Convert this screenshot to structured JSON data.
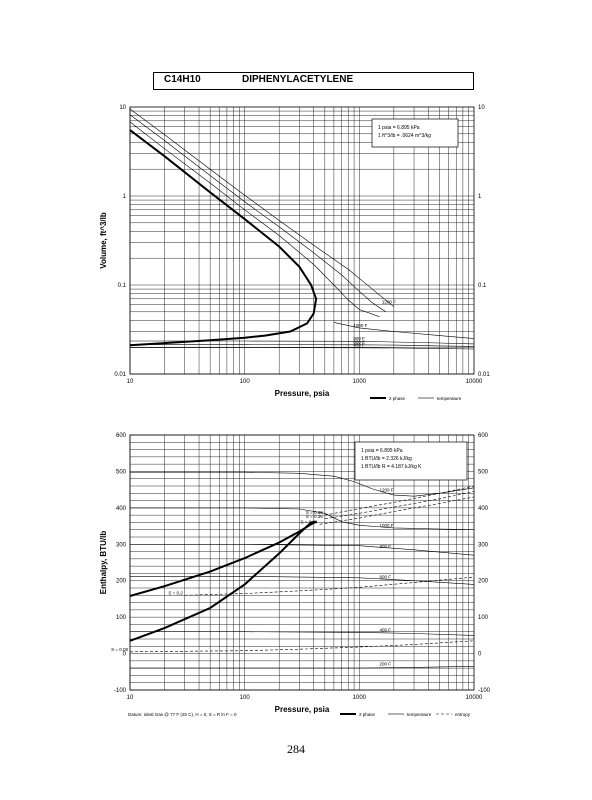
{
  "header": {
    "formula": "C14H10",
    "name": "DIPHENYLACETYLENE"
  },
  "page_number": "284",
  "chart_data": [
    {
      "type": "line",
      "xscale": "log",
      "yscale": "log",
      "xlim": [
        10,
        10000
      ],
      "ylim": [
        0.01,
        10
      ],
      "xlabel": "Pressure, psia",
      "ylabel": "Volume, ft^3/lb",
      "xticks": [
        10,
        100,
        1000,
        10000
      ],
      "xtick_labels": [
        "10",
        "100",
        "1000",
        "10000"
      ],
      "yticks": [
        0.01,
        0.1,
        1,
        10
      ],
      "ytick_labels": [
        "0.01",
        "0.1",
        "1",
        "10"
      ],
      "grid": true,
      "conversion_note": [
        "1 psia = 6.895 kPa",
        "1 ft^3/lb = .0624 m^3/kg"
      ],
      "legend": [
        {
          "label": "2 phase",
          "style": "thick"
        },
        {
          "label": "temperature",
          "style": "thin"
        }
      ],
      "series": [
        {
          "name": "2 phase",
          "style": "thick",
          "x": [
            10,
            20,
            50,
            100,
            200,
            300,
            380,
            420,
            400,
            350,
            250,
            150,
            100,
            50,
            10
          ],
          "y": [
            5.5,
            2.8,
            1.1,
            0.55,
            0.27,
            0.16,
            0.1,
            0.07,
            0.048,
            0.037,
            0.03,
            0.027,
            0.0255,
            0.024,
            0.021
          ]
        },
        {
          "name": "",
          "style": "thin",
          "x": [
            10,
            20,
            50,
            100,
            200,
            400,
            600,
            800,
            1000,
            1500
          ],
          "y": [
            6.8,
            3.4,
            1.4,
            0.7,
            0.36,
            0.17,
            0.1,
            0.068,
            0.053,
            0.044
          ]
        },
        {
          "name": "",
          "style": "thin",
          "x": [
            10,
            20,
            50,
            100,
            200,
            400,
            700,
            1000,
            1300,
            1700
          ],
          "y": [
            8.2,
            4.2,
            1.7,
            0.86,
            0.45,
            0.23,
            0.13,
            0.085,
            0.063,
            0.05
          ]
        },
        {
          "name": "1200 F",
          "style": "thin",
          "x": [
            10,
            20,
            50,
            100,
            200,
            400,
            800,
            1200,
            1600,
            2000
          ],
          "y": [
            9.5,
            4.9,
            2.0,
            1.02,
            0.53,
            0.28,
            0.15,
            0.098,
            0.072,
            0.057
          ]
        },
        {
          "name": "1000 F",
          "style": "thin",
          "x": [
            600,
            1000,
            2000,
            5000,
            10000
          ],
          "y": [
            0.038,
            0.033,
            0.03,
            0.027,
            0.025
          ]
        },
        {
          "name": "800 F",
          "style": "thin",
          "x": [
            10,
            100,
            1000,
            2000,
            5000,
            10000
          ],
          "y": [
            0.0235,
            0.0235,
            0.0233,
            0.0229,
            0.0223,
            0.0218
          ]
        },
        {
          "name": "600 F",
          "style": "thin",
          "x": [
            10,
            100,
            1000,
            2000,
            5000,
            10000
          ],
          "y": [
            0.0214,
            0.0214,
            0.0213,
            0.0211,
            0.0207,
            0.0204
          ]
        },
        {
          "name": "400 F",
          "style": "thin",
          "x": [
            10,
            100,
            1000,
            2000,
            5000,
            10000
          ],
          "y": [
            0.0198,
            0.0198,
            0.0197,
            0.0196,
            0.0193,
            0.0191
          ]
        }
      ]
    },
    {
      "type": "line",
      "xscale": "log",
      "yscale": "linear",
      "xlim": [
        10,
        10000
      ],
      "ylim": [
        -100,
        600
      ],
      "xlabel": "Pressure, psia",
      "ylabel": "Enthalpy, BTU/lb",
      "xticks": [
        10,
        100,
        1000,
        10000
      ],
      "xtick_labels": [
        "10",
        "100",
        "1000",
        "10000"
      ],
      "yticks": [
        -100,
        0,
        100,
        200,
        300,
        400,
        500,
        600
      ],
      "ytick_labels": [
        "-100",
        "0",
        "100",
        "200",
        "300",
        "400",
        "500",
        "600"
      ],
      "grid": true,
      "conversion_note": [
        "1 psia = 6.895 kPa",
        "1 BTU/lb = 2.326 kJ/kg",
        "1 BTU/lb R = 4.187 kJ/kg K"
      ],
      "footnote": "Datum: Ideal Gas @ 77 F (25 C), H = 0, S = R ln F = 0",
      "legend": [
        {
          "label": "2 phase",
          "style": "thick"
        },
        {
          "label": "temperature",
          "style": "thin"
        },
        {
          "label": "entropy",
          "style": "dashed"
        }
      ],
      "series": [
        {
          "name": "2 phase",
          "style": "thick",
          "x": [
            10,
            20,
            50,
            100,
            200,
            300,
            380,
            420,
            380,
            300,
            200,
            100,
            50,
            20,
            10
          ],
          "y": [
            158,
            185,
            225,
            262,
            305,
            335,
            355,
            362,
            360,
            330,
            275,
            190,
            125,
            70,
            35
          ]
        },
        {
          "name": "1200 F",
          "style": "thin",
          "x": [
            10,
            100,
            300,
            600,
            900,
            1300,
            2000,
            3000,
            5000,
            10000
          ],
          "y": [
            498,
            498,
            495,
            487,
            472,
            452,
            435,
            432,
            440,
            455
          ]
        },
        {
          "name": "1000 F",
          "style": "thin",
          "x": [
            10,
            100,
            300,
            500,
            700,
            1000,
            2000,
            5000,
            10000
          ],
          "y": [
            400,
            400,
            397,
            385,
            362,
            352,
            345,
            342,
            340
          ]
        },
        {
          "name": "800 F",
          "style": "thin",
          "x": [
            10,
            100,
            1000,
            3000,
            10000
          ],
          "y": [
            300,
            300,
            296,
            285,
            270
          ]
        },
        {
          "name": "600 F",
          "style": "thin",
          "x": [
            10,
            100,
            1000,
            3000,
            10000
          ],
          "y": [
            212,
            212,
            208,
            200,
            190
          ]
        },
        {
          "name": "400 F",
          "style": "thin",
          "x": [
            10,
            100,
            1000,
            3000,
            10000
          ],
          "y": [
            60,
            60,
            58,
            55,
            50
          ]
        },
        {
          "name": "200 F",
          "style": "thin",
          "x": [
            10,
            100,
            1000,
            3000,
            10000
          ],
          "y": [
            -40,
            -40,
            -40,
            -38,
            -35
          ]
        },
        {
          "name": "S = 0.38",
          "style": "dashed",
          "x": [
            500,
            1000,
            2000,
            5000,
            10000
          ],
          "y": [
            380,
            398,
            415,
            440,
            460
          ]
        },
        {
          "name": "S = 0.36",
          "style": "dashed",
          "x": [
            500,
            1000,
            2000,
            5000,
            10000
          ],
          "y": [
            370,
            385,
            402,
            425,
            445
          ]
        },
        {
          "name": "S = 0.34",
          "style": "dashed",
          "x": [
            450,
            1000,
            2000,
            5000,
            10000
          ],
          "y": [
            355,
            372,
            390,
            412,
            430
          ]
        },
        {
          "name": "S = 0.2",
          "style": "dashed",
          "x": [
            30,
            100,
            300,
            1000,
            3000,
            10000
          ],
          "y": [
            160,
            165,
            172,
            182,
            195,
            210
          ]
        },
        {
          "name": "S = 0.08",
          "style": "dashed",
          "x": [
            10,
            100,
            300,
            1000,
            3000,
            10000
          ],
          "y": [
            5,
            8,
            12,
            18,
            25,
            35
          ]
        }
      ]
    }
  ]
}
